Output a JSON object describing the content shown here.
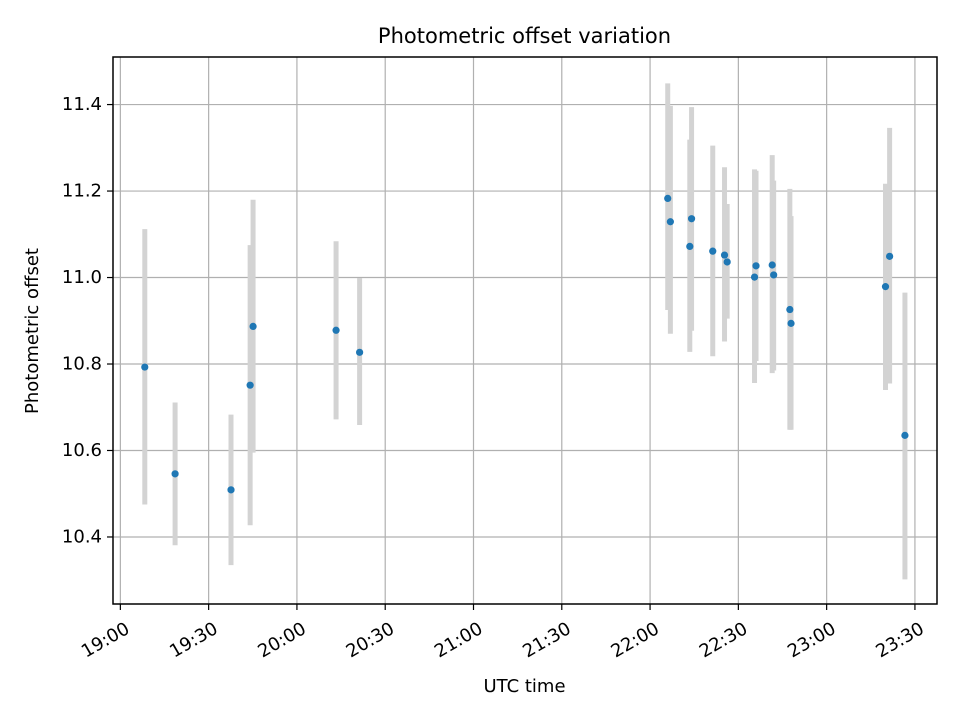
{
  "chart_data": {
    "type": "scatter",
    "title": "Photometric offset variation",
    "xlabel": "UTC time",
    "ylabel": "Photometric offset",
    "grid": true,
    "x_unit": "minutes since 19:00",
    "xlim": [
      -2.5,
      277.5
    ],
    "ylim": [
      10.245,
      11.51
    ],
    "x_ticks": [
      {
        "value": 0,
        "label": "19:00"
      },
      {
        "value": 30,
        "label": "19:30"
      },
      {
        "value": 60,
        "label": "20:00"
      },
      {
        "value": 90,
        "label": "20:30"
      },
      {
        "value": 120,
        "label": "21:00"
      },
      {
        "value": 150,
        "label": "21:30"
      },
      {
        "value": 180,
        "label": "22:00"
      },
      {
        "value": 210,
        "label": "22:30"
      },
      {
        "value": 240,
        "label": "23:00"
      },
      {
        "value": 270,
        "label": "23:30"
      }
    ],
    "y_ticks": [
      {
        "value": 10.4,
        "label": "10.4"
      },
      {
        "value": 10.6,
        "label": "10.6"
      },
      {
        "value": 10.8,
        "label": "10.8"
      },
      {
        "value": 11.0,
        "label": "11.0"
      },
      {
        "value": 11.2,
        "label": "11.2"
      },
      {
        "value": 11.4,
        "label": "11.4"
      }
    ],
    "series": [
      {
        "name": "Photometric offset",
        "marker_color": "#1f77b4",
        "errorbar_color": "#d3d3d3",
        "points": [
          {
            "time": "19:08",
            "x": 8.3,
            "y": 10.793,
            "ylow": 10.475,
            "yhigh": 11.112
          },
          {
            "time": "19:19",
            "x": 18.6,
            "y": 10.546,
            "ylow": 10.381,
            "yhigh": 10.711
          },
          {
            "time": "19:38",
            "x": 37.6,
            "y": 10.509,
            "ylow": 10.335,
            "yhigh": 10.683
          },
          {
            "time": "19:44",
            "x": 44.1,
            "y": 10.751,
            "ylow": 10.427,
            "yhigh": 11.075
          },
          {
            "time": "19:45",
            "x": 45.1,
            "y": 10.887,
            "ylow": 10.595,
            "yhigh": 11.18
          },
          {
            "time": "20:13",
            "x": 73.3,
            "y": 10.878,
            "ylow": 10.672,
            "yhigh": 11.084
          },
          {
            "time": "20:21",
            "x": 81.3,
            "y": 10.827,
            "ylow": 10.659,
            "yhigh": 10.999
          },
          {
            "time": "22:06",
            "x": 186.0,
            "y": 11.183,
            "ylow": 10.925,
            "yhigh": 11.449
          },
          {
            "time": "22:07",
            "x": 186.9,
            "y": 11.129,
            "ylow": 10.87,
            "yhigh": 11.397
          },
          {
            "time": "22:13",
            "x": 193.5,
            "y": 11.072,
            "ylow": 10.828,
            "yhigh": 11.319
          },
          {
            "time": "22:14",
            "x": 194.1,
            "y": 11.136,
            "ylow": 10.877,
            "yhigh": 11.394
          },
          {
            "time": "22:21",
            "x": 201.3,
            "y": 11.061,
            "ylow": 10.818,
            "yhigh": 11.305
          },
          {
            "time": "22:25",
            "x": 205.3,
            "y": 11.052,
            "ylow": 10.852,
            "yhigh": 11.255
          },
          {
            "time": "22:26",
            "x": 206.2,
            "y": 11.036,
            "ylow": 10.905,
            "yhigh": 11.17
          },
          {
            "time": "22:35",
            "x": 215.5,
            "y": 11.001,
            "ylow": 10.756,
            "yhigh": 11.25
          },
          {
            "time": "22:36",
            "x": 216.0,
            "y": 11.027,
            "ylow": 10.807,
            "yhigh": 11.247
          },
          {
            "time": "22:41",
            "x": 221.5,
            "y": 11.029,
            "ylow": 10.779,
            "yhigh": 11.283
          },
          {
            "time": "22:42",
            "x": 222.0,
            "y": 11.006,
            "ylow": 10.785,
            "yhigh": 11.224
          },
          {
            "time": "22:47",
            "x": 227.5,
            "y": 10.926,
            "ylow": 10.648,
            "yhigh": 11.205
          },
          {
            "time": "22:48",
            "x": 227.9,
            "y": 10.894,
            "ylow": 10.648,
            "yhigh": 11.142
          },
          {
            "time": "23:20",
            "x": 260.0,
            "y": 10.979,
            "ylow": 10.74,
            "yhigh": 11.217
          },
          {
            "time": "23:21",
            "x": 261.4,
            "y": 11.049,
            "ylow": 10.755,
            "yhigh": 11.346
          },
          {
            "time": "23:27",
            "x": 266.6,
            "y": 10.635,
            "ylow": 10.302,
            "yhigh": 10.965
          }
        ]
      }
    ]
  }
}
